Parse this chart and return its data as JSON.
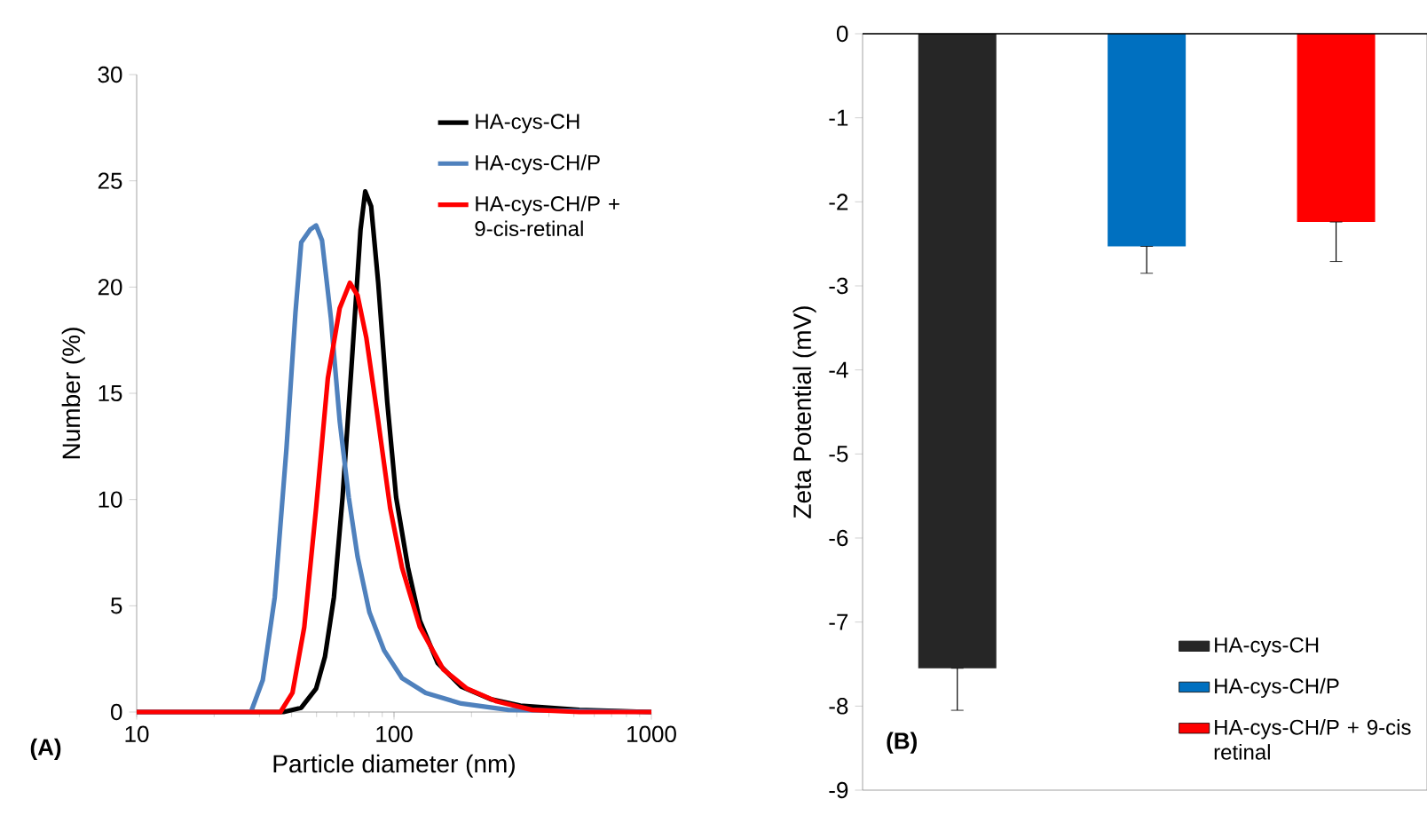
{
  "chart_data": [
    {
      "type": "line",
      "xlabel": "Particle diameter (nm)",
      "ylabel": "Number (%)",
      "log": "x",
      "xlim": [
        10,
        1000
      ],
      "xticks": [
        10,
        100,
        1000
      ],
      "ylim": [
        0,
        30
      ],
      "yticks": [
        0,
        5,
        10,
        15,
        20,
        25,
        30
      ],
      "legend": "top right",
      "marker": "none",
      "line_style": "solid",
      "grid": false,
      "annotations": [
        "(A)"
      ],
      "series": [
        {
          "name": "HA-cys-CH",
          "color": "#000000",
          "x": [
            10,
            37.2,
            43.6,
            49.8,
            53.9,
            58.4,
            63.1,
            68.4,
            74.1,
            77.3,
            81.5,
            86.8,
            94.1,
            101.9,
            113.3,
            126,
            147.8,
            182.5,
            237.7,
            309.7,
            525,
            1000
          ],
          "values": [
            0,
            0,
            0.2,
            1.1,
            2.6,
            5.4,
            10.1,
            16.3,
            22.7,
            24.5,
            23.8,
            20.2,
            14.6,
            10.1,
            6.8,
            4.3,
            2.3,
            1.2,
            0.6,
            0.3,
            0.1,
            0
          ]
        },
        {
          "name": "HA-cys-CH/P",
          "color": "#4f81bd",
          "x": [
            10,
            27.8,
            30.9,
            34.4,
            38.2,
            41.4,
            43.6,
            47.2,
            49.8,
            52.5,
            56.9,
            61.5,
            66.7,
            72.2,
            80.2,
            91.5,
            107.4,
            132.7,
            182.5,
            278.6,
            1000
          ],
          "values": [
            0,
            0,
            1.5,
            5.4,
            12.4,
            18.8,
            22.1,
            22.7,
            22.9,
            22.2,
            18.5,
            13.7,
            10.1,
            7.3,
            4.7,
            2.9,
            1.6,
            0.9,
            0.4,
            0.1,
            0
          ]
        },
        {
          "name": "HA-cys-CH/P + 9-cis-retinal",
          "color": "#ff0000",
          "x": [
            10,
            36.2,
            40.3,
            44.8,
            49.8,
            55.3,
            61.5,
            67.4,
            72.2,
            78.1,
            86.8,
            96.6,
            107.4,
            126,
            155.6,
            192.3,
            250.6,
            344.4,
            525,
            1000
          ],
          "values": [
            0,
            0,
            0.9,
            4.0,
            9.6,
            15.7,
            19.0,
            20.2,
            19.6,
            17.6,
            13.7,
            9.6,
            6.8,
            4.0,
            2.0,
            1.1,
            0.5,
            0.1,
            0,
            0
          ]
        }
      ]
    },
    {
      "type": "bar",
      "ylabel": "Zeta Potential (mV)",
      "categories": [
        null,
        null,
        null
      ],
      "ylim": [
        -9,
        0
      ],
      "yticks": [
        0,
        -1,
        -2,
        -3,
        -4,
        -5,
        -6,
        -7,
        -8,
        -9
      ],
      "legend": "bottom right",
      "grid": false,
      "tick_labels": "y",
      "annotations": [
        "(B)"
      ],
      "series": [
        {
          "name": "HA-cys-CH",
          "color": "#262626",
          "values": [
            -7.55,
            null,
            null
          ],
          "errors": [
            [
              -8.05,
              -7.55
            ],
            null,
            null
          ]
        },
        {
          "name": "HA-cys-CH/P",
          "color": "#0070c0",
          "values": [
            null,
            -2.53,
            null
          ],
          "errors": [
            null,
            [
              -2.85,
              -2.53
            ],
            null
          ]
        },
        {
          "name": "HA-cys-CH/P + 9-cis retinal",
          "color": "#ff0000",
          "values": [
            null,
            null,
            -2.24
          ],
          "errors": [
            null,
            null,
            [
              -2.71,
              -2.24
            ]
          ]
        }
      ]
    }
  ]
}
